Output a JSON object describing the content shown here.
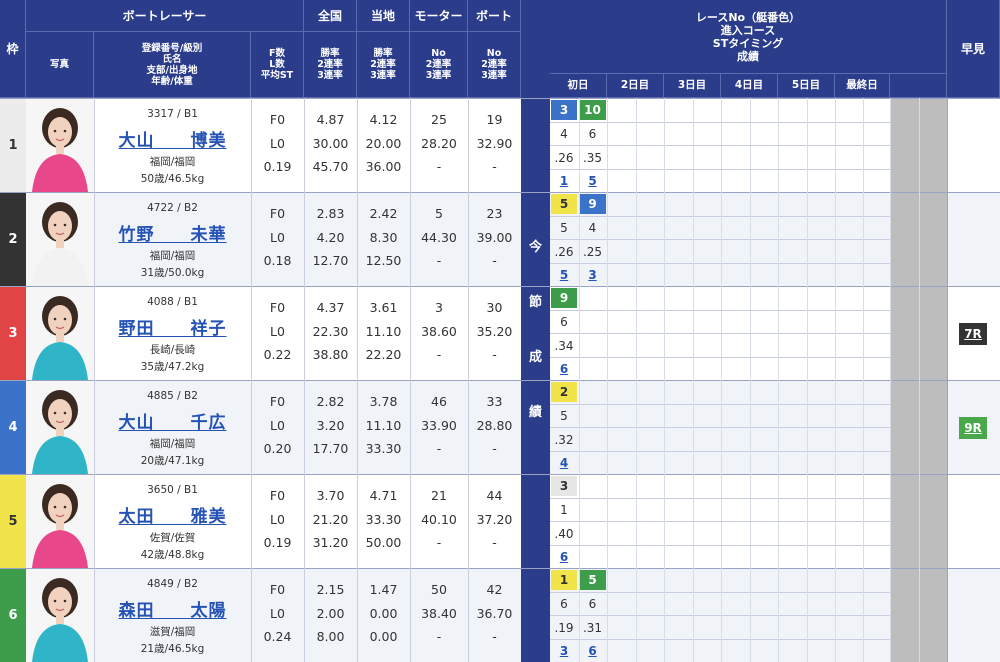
{
  "header": {
    "frame": "枠",
    "boatracer": "ボートレーサー",
    "zenkoku": "全国",
    "touchi": "当地",
    "motor": "モーター",
    "boat": "ボート",
    "photo": "写真",
    "racer_info": [
      "登録番号/級別",
      "氏名",
      "支部/出身地",
      "年齢/体重"
    ],
    "fl": [
      "F数",
      "L数",
      "平均ST"
    ],
    "zenkoku_sub": [
      "勝率",
      "2連率",
      "3連率"
    ],
    "touchi_sub": [
      "勝率",
      "2連率",
      "3連率"
    ],
    "motor_sub": [
      "No",
      "2連率",
      "3連率"
    ],
    "boat_sub": [
      "No",
      "2連率",
      "3連率"
    ],
    "race_info": [
      "レースNo（艇番色）",
      "進入コース",
      "STタイミング",
      "成績"
    ],
    "hayami": "早見",
    "days": [
      "初日",
      "2日目",
      "3日目",
      "4日目",
      "5日目",
      "最終日"
    ],
    "konsetsu": [
      "今",
      "節",
      "成",
      "績"
    ]
  },
  "colors": {
    "header_bg": "#2a3c8a",
    "frame_colors": [
      "#ececec",
      "#333333",
      "#e04444",
      "#3b73c8",
      "#f0e44a",
      "#3e9d4b"
    ],
    "frame_text": [
      "#333333",
      "#ffffff",
      "#ffffff",
      "#ffffff",
      "#333333",
      "#ffffff"
    ],
    "name_link": "#2553b5"
  },
  "racers": [
    {
      "frame": "1",
      "reg": "3317 / B1",
      "name": "大山　　博美",
      "origin": "福岡/福岡",
      "age": "50歳/46.5kg",
      "f": "F0",
      "l": "L0",
      "st": "0.19",
      "zen": [
        "4.87",
        "30.00",
        "45.70"
      ],
      "tou": [
        "4.12",
        "20.00",
        "36.00"
      ],
      "mot": [
        "25",
        "28.20",
        "-"
      ],
      "bot": [
        "19",
        "32.90",
        "-"
      ],
      "races": [
        {
          "no": "3",
          "color": "#3b73c8",
          "tc": "#fff",
          "course": "4",
          "st": ".26",
          "rank": "1"
        },
        {
          "no": "10",
          "color": "#3e9d4b",
          "tc": "#fff",
          "course": "6",
          "st": ".35",
          "rank": "5"
        }
      ],
      "hayami": ""
    },
    {
      "frame": "2",
      "reg": "4722 / B2",
      "name": "竹野　　未華",
      "origin": "福岡/福岡",
      "age": "31歳/50.0kg",
      "f": "F0",
      "l": "L0",
      "st": "0.18",
      "zen": [
        "2.83",
        "4.20",
        "12.70"
      ],
      "tou": [
        "2.42",
        "8.30",
        "12.50"
      ],
      "mot": [
        "5",
        "44.30",
        "-"
      ],
      "bot": [
        "23",
        "39.00",
        "-"
      ],
      "races": [
        {
          "no": "5",
          "color": "#f0e44a",
          "tc": "#333",
          "course": "5",
          "st": ".26",
          "rank": "5"
        },
        {
          "no": "9",
          "color": "#3b73c8",
          "tc": "#fff",
          "course": "4",
          "st": ".25",
          "rank": "3"
        }
      ],
      "hayami": ""
    },
    {
      "frame": "3",
      "reg": "4088 / B1",
      "name": "野田　　祥子",
      "origin": "長崎/長崎",
      "age": "35歳/47.2kg",
      "f": "F0",
      "l": "L0",
      "st": "0.22",
      "zen": [
        "4.37",
        "22.30",
        "38.80"
      ],
      "tou": [
        "3.61",
        "11.10",
        "22.20"
      ],
      "mot": [
        "3",
        "38.60",
        "-"
      ],
      "bot": [
        "30",
        "35.20",
        "-"
      ],
      "races": [
        {
          "no": "9",
          "color": "#3e9d4b",
          "tc": "#fff",
          "course": "6",
          "st": ".34",
          "rank": "6"
        }
      ],
      "hayami": "7R",
      "hayami_color": "#333333"
    },
    {
      "frame": "4",
      "reg": "4885 / B2",
      "name": "大山　　千広",
      "origin": "福岡/福岡",
      "age": "20歳/47.1kg",
      "f": "F0",
      "l": "L0",
      "st": "0.20",
      "zen": [
        "2.82",
        "3.20",
        "17.70"
      ],
      "tou": [
        "3.78",
        "11.10",
        "33.30"
      ],
      "mot": [
        "46",
        "33.90",
        "-"
      ],
      "bot": [
        "33",
        "28.80",
        "-"
      ],
      "races": [
        {
          "no": "2",
          "color": "#f0e44a",
          "tc": "#333",
          "course": "5",
          "st": ".32",
          "rank": "4"
        }
      ],
      "hayami": "9R",
      "hayami_color": "#4aa84a"
    },
    {
      "frame": "5",
      "reg": "3650 / B1",
      "name": "太田　　雅美",
      "origin": "佐賀/佐賀",
      "age": "42歳/48.8kg",
      "f": "F0",
      "l": "L0",
      "st": "0.19",
      "zen": [
        "3.70",
        "21.20",
        "31.20"
      ],
      "tou": [
        "4.71",
        "33.30",
        "50.00"
      ],
      "mot": [
        "21",
        "40.10",
        "-"
      ],
      "bot": [
        "44",
        "37.20",
        "-"
      ],
      "races": [
        {
          "no": "3",
          "color": "#e6e6e6",
          "tc": "#333",
          "course": "1",
          "st": ".40",
          "rank": "6"
        }
      ],
      "hayami": ""
    },
    {
      "frame": "6",
      "reg": "4849 / B2",
      "name": "森田　　太陽",
      "origin": "滋賀/福岡",
      "age": "21歳/46.5kg",
      "f": "F0",
      "l": "L0",
      "st": "0.24",
      "zen": [
        "2.15",
        "2.00",
        "8.00"
      ],
      "tou": [
        "1.47",
        "0.00",
        "0.00"
      ],
      "mot": [
        "50",
        "38.40",
        "-"
      ],
      "bot": [
        "42",
        "36.70",
        "-"
      ],
      "races": [
        {
          "no": "1",
          "color": "#f0e44a",
          "tc": "#333",
          "course": "6",
          "st": ".19",
          "rank": "3"
        },
        {
          "no": "5",
          "color": "#3e9d4b",
          "tc": "#fff",
          "course": "6",
          "st": ".31",
          "rank": "6"
        }
      ],
      "hayami": ""
    }
  ]
}
